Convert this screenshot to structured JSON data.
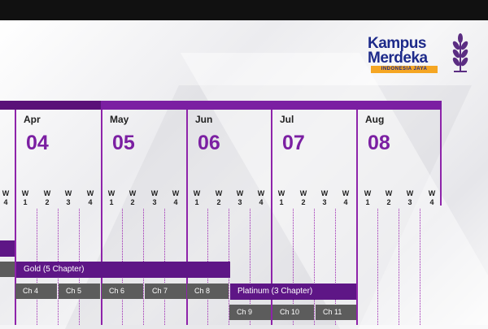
{
  "brand": {
    "line1": "Kampus",
    "line2": "Merdeka",
    "tagline": "INDONESIA JAYA",
    "emblem_icon": "wheat-emblem-icon",
    "colors": {
      "primary": "#7b1fa2",
      "dark": "#5e1686",
      "navy": "#1d2a8a",
      "tag": "#f5a623"
    }
  },
  "timeline": {
    "partial_weeks": [
      {
        "w": "W",
        "n": "4"
      }
    ],
    "months": [
      {
        "name": "Apr",
        "num": "04"
      },
      {
        "name": "May",
        "num": "05"
      },
      {
        "name": "Jun",
        "num": "06"
      },
      {
        "name": "Jul",
        "num": "07"
      },
      {
        "name": "Aug",
        "num": "08"
      }
    ],
    "week_labels": {
      "w": "W",
      "n": [
        "1",
        "2",
        "3",
        "4"
      ]
    }
  },
  "tracks": {
    "gold": {
      "label": "Gold (5 Chapter)"
    },
    "platinum": {
      "label": "Platinum (3 Chapter)"
    },
    "chapters": [
      "Ch 4",
      "Ch 5",
      "Ch 6",
      "Ch 7",
      "Ch 8",
      "Ch 9",
      "Ch 10",
      "Ch 11"
    ]
  }
}
